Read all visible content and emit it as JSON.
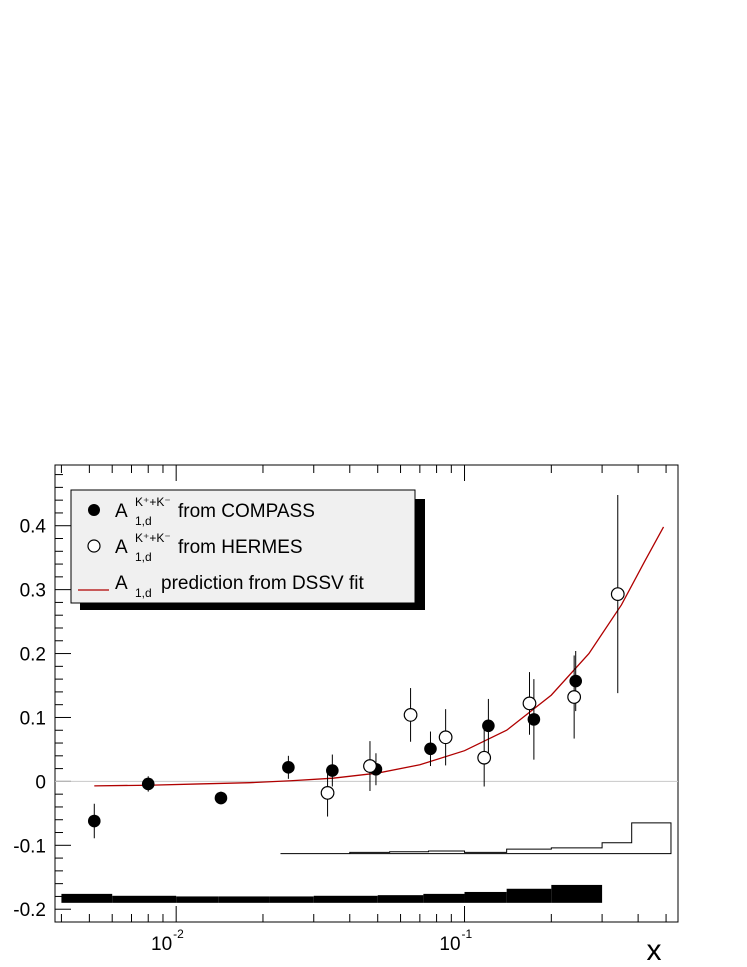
{
  "chart_data": {
    "type": "scatter",
    "x_scale": "log",
    "xlim": [
      0.0038,
      0.55
    ],
    "ylim": [
      -0.22,
      0.495
    ],
    "xlabel": "x",
    "ylabel": "",
    "x_tick_labels": [
      {
        "x": 0.01,
        "base": "10",
        "exp": "-2"
      },
      {
        "x": 0.1,
        "base": "10",
        "exp": "-1"
      }
    ],
    "y_tick_labels": [
      {
        "y": 0.4,
        "label": "0.4"
      },
      {
        "y": 0.3,
        "label": "0.3"
      },
      {
        "y": 0.2,
        "label": "0.2"
      },
      {
        "y": 0.1,
        "label": "0.1"
      },
      {
        "y": 0.0,
        "label": "0"
      },
      {
        "y": -0.1,
        "label": "-0.1"
      },
      {
        "y": -0.2,
        "label": "-0.2"
      }
    ],
    "grid": false,
    "legend_position": "top-left",
    "legend": [
      {
        "marker": "filled-circle",
        "main": "A",
        "sub": "1,d",
        "sup": "K⁺+K⁻",
        "text": "from COMPASS"
      },
      {
        "marker": "open-circle",
        "main": "A",
        "sub": "1,d",
        "sup": "K⁺+K⁻",
        "text": "from HERMES"
      },
      {
        "marker": "line",
        "main": "A",
        "sub": "1,d",
        "sup": "",
        "text": "prediction from DSSV fit"
      }
    ],
    "series": [
      {
        "label": "COMPASS",
        "marker": "filled-circle",
        "points": [
          {
            "x": 0.0052,
            "y": -0.062,
            "err": 0.027
          },
          {
            "x": 0.008,
            "y": -0.004,
            "err": 0.012
          },
          {
            "x": 0.0143,
            "y": -0.026,
            "err": 0.01
          },
          {
            "x": 0.0245,
            "y": 0.022,
            "err": 0.018
          },
          {
            "x": 0.0348,
            "y": 0.017,
            "err": 0.025
          },
          {
            "x": 0.0493,
            "y": 0.019,
            "err": 0.025
          },
          {
            "x": 0.0762,
            "y": 0.051,
            "err": 0.027
          },
          {
            "x": 0.121,
            "y": 0.087,
            "err": 0.042
          },
          {
            "x": 0.174,
            "y": 0.097,
            "err": 0.063
          },
          {
            "x": 0.243,
            "y": 0.157,
            "err": 0.047
          }
        ]
      },
      {
        "label": "HERMES",
        "marker": "open-circle",
        "points": [
          {
            "x": 0.0335,
            "y": -0.018,
            "err": 0.037
          },
          {
            "x": 0.047,
            "y": 0.024,
            "err": 0.039
          },
          {
            "x": 0.065,
            "y": 0.104,
            "err": 0.042
          },
          {
            "x": 0.086,
            "y": 0.069,
            "err": 0.044
          },
          {
            "x": 0.117,
            "y": 0.037,
            "err": 0.045
          },
          {
            "x": 0.168,
            "y": 0.122,
            "err": 0.049
          },
          {
            "x": 0.24,
            "y": 0.132,
            "err": 0.065
          },
          {
            "x": 0.34,
            "y": 0.293,
            "err": 0.155
          }
        ]
      },
      {
        "label": "DSSV fit",
        "marker": "line",
        "color": "#b00000",
        "x": [
          0.0052,
          0.008,
          0.012,
          0.018,
          0.025,
          0.035,
          0.05,
          0.07,
          0.1,
          0.14,
          0.2,
          0.27,
          0.35,
          0.42,
          0.49
        ],
        "y": [
          -0.007,
          -0.006,
          -0.004,
          -0.002,
          0.001,
          0.005,
          0.013,
          0.026,
          0.048,
          0.08,
          0.135,
          0.2,
          0.276,
          0.343,
          0.398
        ]
      }
    ],
    "syst_hermes_hist": {
      "edges": [
        0.023,
        0.04,
        0.055,
        0.075,
        0.1,
        0.14,
        0.2,
        0.3,
        0.38,
        0.52
      ],
      "values": [
        -0.113,
        -0.111,
        -0.11,
        -0.109,
        -0.111,
        -0.106,
        -0.104,
        -0.096,
        -0.065
      ],
      "base": -0.113
    },
    "syst_compass_band": {
      "edges": [
        0.004,
        0.006,
        0.01,
        0.014,
        0.021,
        0.03,
        0.05,
        0.072,
        0.1,
        0.14,
        0.2,
        0.3
      ],
      "tops": [
        -0.176,
        -0.179,
        -0.18,
        -0.18,
        -0.18,
        -0.179,
        -0.178,
        -0.176,
        -0.173,
        -0.168,
        -0.162,
        -0.157
      ],
      "base": -0.19
    },
    "colors": {
      "fit": "#b00000",
      "zero_line": "#c8c8c8",
      "legend_bg": "#f0f0f0",
      "marker": "#000000"
    }
  }
}
